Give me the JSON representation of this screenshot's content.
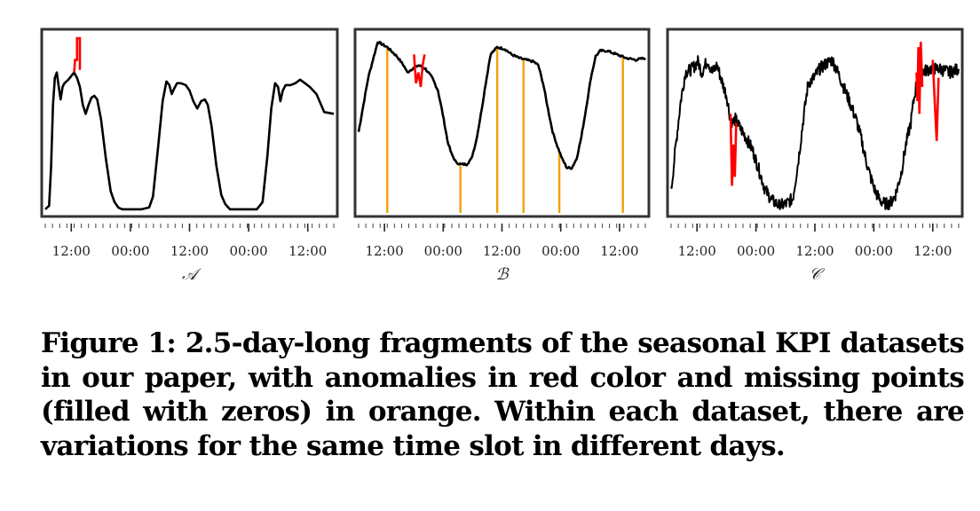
{
  "figure": {
    "colors": {
      "normal": "#000000",
      "anomaly": "#ff0000",
      "missing": "#f5a000"
    },
    "x_tick_labels": [
      "12:00",
      "00:00",
      "12:00",
      "00:00",
      "12:00"
    ]
  },
  "chart_data": [
    {
      "type": "line",
      "label": "𝒜",
      "xlim": [
        0,
        60
      ],
      "ylim": [
        0,
        1
      ],
      "y_ticks_shown": false,
      "grid": false,
      "base": [
        [
          0,
          0.02
        ],
        [
          0.8,
          0.04
        ],
        [
          1.2,
          0.25
        ],
        [
          1.6,
          0.6
        ],
        [
          2,
          0.75
        ],
        [
          2.4,
          0.78
        ],
        [
          2.8,
          0.7
        ],
        [
          3.2,
          0.63
        ],
        [
          3.6,
          0.7
        ],
        [
          4,
          0.72
        ],
        [
          4.8,
          0.74
        ],
        [
          5.4,
          0.76
        ],
        [
          6,
          0.78
        ],
        [
          6.6,
          0.75
        ],
        [
          7.2,
          0.7
        ],
        [
          7.8,
          0.6
        ],
        [
          8.4,
          0.55
        ],
        [
          9,
          0.6
        ],
        [
          9.6,
          0.64
        ],
        [
          10.2,
          0.65
        ],
        [
          10.8,
          0.63
        ],
        [
          11.6,
          0.52
        ],
        [
          12.6,
          0.3
        ],
        [
          13.6,
          0.12
        ],
        [
          14.4,
          0.06
        ],
        [
          15.2,
          0.03
        ],
        [
          16,
          0.02
        ],
        [
          20,
          0.02
        ],
        [
          21.6,
          0.03
        ],
        [
          22.4,
          0.09
        ],
        [
          23.4,
          0.35
        ],
        [
          24.4,
          0.62
        ],
        [
          25.2,
          0.73
        ],
        [
          25.8,
          0.71
        ],
        [
          26.3,
          0.66
        ],
        [
          26.8,
          0.69
        ],
        [
          27.4,
          0.72
        ],
        [
          28.2,
          0.72
        ],
        [
          29.2,
          0.71
        ],
        [
          30,
          0.68
        ],
        [
          30.8,
          0.62
        ],
        [
          31.6,
          0.58
        ],
        [
          32.4,
          0.62
        ],
        [
          33.2,
          0.63
        ],
        [
          33.8,
          0.6
        ],
        [
          34.6,
          0.48
        ],
        [
          35.6,
          0.26
        ],
        [
          36.6,
          0.1
        ],
        [
          37.4,
          0.05
        ],
        [
          38.4,
          0.02
        ],
        [
          44,
          0.02
        ],
        [
          45.2,
          0.06
        ],
        [
          46.2,
          0.32
        ],
        [
          47,
          0.58
        ],
        [
          47.8,
          0.72
        ],
        [
          48.4,
          0.7
        ],
        [
          48.9,
          0.62
        ],
        [
          49.4,
          0.68
        ],
        [
          50,
          0.71
        ],
        [
          51,
          0.71
        ],
        [
          52,
          0.72
        ],
        [
          53,
          0.74
        ],
        [
          54,
          0.72
        ],
        [
          55,
          0.7
        ],
        [
          56.4,
          0.66
        ],
        [
          58,
          0.56
        ],
        [
          60,
          0.55
        ]
      ],
      "anomalies": [
        [
          [
            6,
            0.78
          ],
          [
            6.2,
            0.85
          ],
          [
            6.6,
            0.85
          ],
          [
            6.6,
            0.97
          ],
          [
            7.2,
            0.97
          ],
          [
            7.2,
            0.8
          ],
          [
            7.4,
            0.8
          ]
        ]
      ],
      "missing_x": []
    },
    {
      "type": "line",
      "label": "ℬ",
      "xlim": [
        0,
        60
      ],
      "ylim": [
        0,
        1
      ],
      "y_ticks_shown": false,
      "grid": false,
      "base": [
        [
          0,
          0.45
        ],
        [
          2,
          0.75
        ],
        [
          4,
          0.95
        ],
        [
          6,
          0.92
        ],
        [
          8,
          0.87
        ],
        [
          9.4,
          0.82
        ],
        [
          10.2,
          0.78
        ],
        [
          11.2,
          0.8
        ],
        [
          12.6,
          0.82
        ],
        [
          14,
          0.8
        ],
        [
          15.4,
          0.75
        ],
        [
          16.6,
          0.68
        ],
        [
          17.6,
          0.55
        ],
        [
          18.6,
          0.4
        ],
        [
          19.4,
          0.33
        ],
        [
          20.4,
          0.28
        ],
        [
          21.4,
          0.27
        ],
        [
          22.6,
          0.27
        ],
        [
          23.6,
          0.3
        ],
        [
          24.6,
          0.4
        ],
        [
          25.6,
          0.55
        ],
        [
          26.6,
          0.72
        ],
        [
          27.6,
          0.88
        ],
        [
          29,
          0.92
        ],
        [
          30.6,
          0.91
        ],
        [
          32,
          0.88
        ],
        [
          33.6,
          0.86
        ],
        [
          35,
          0.85
        ],
        [
          36.6,
          0.84
        ],
        [
          37.6,
          0.82
        ],
        [
          38.6,
          0.72
        ],
        [
          39.6,
          0.58
        ],
        [
          40.6,
          0.45
        ],
        [
          41.6,
          0.37
        ],
        [
          42.6,
          0.3
        ],
        [
          43.6,
          0.25
        ],
        [
          44.6,
          0.25
        ],
        [
          45.6,
          0.3
        ],
        [
          46.6,
          0.42
        ],
        [
          47.6,
          0.58
        ],
        [
          48.6,
          0.75
        ],
        [
          49.6,
          0.87
        ],
        [
          50.6,
          0.9
        ],
        [
          52,
          0.9
        ],
        [
          54,
          0.88
        ],
        [
          56,
          0.86
        ],
        [
          58,
          0.85
        ],
        [
          60,
          0.86
        ]
      ],
      "anomalies": [
        [
          [
            11.6,
            0.88
          ],
          [
            12,
            0.72
          ],
          [
            12.5,
            0.78
          ],
          [
            13,
            0.7
          ],
          [
            13.4,
            0.82
          ],
          [
            13.8,
            0.88
          ]
        ]
      ],
      "missing_x": [
        6,
        21.3,
        29,
        34.5,
        42,
        55.3
      ]
    },
    {
      "type": "line",
      "label": "𝒞",
      "xlim": [
        0,
        60
      ],
      "ylim": [
        0,
        1
      ],
      "y_ticks_shown": false,
      "grid": false,
      "base": [
        [
          0,
          0.12
        ],
        [
          1,
          0.38
        ],
        [
          2,
          0.62
        ],
        [
          3,
          0.78
        ],
        [
          4.4,
          0.8
        ],
        [
          5.6,
          0.84
        ],
        [
          6.4,
          0.78
        ],
        [
          7.6,
          0.85
        ],
        [
          8.6,
          0.78
        ],
        [
          9.6,
          0.82
        ],
        [
          10.6,
          0.73
        ],
        [
          11.6,
          0.65
        ],
        [
          12.2,
          0.55
        ],
        [
          12.8,
          0.5
        ],
        [
          13.4,
          0.52
        ],
        [
          14.2,
          0.48
        ],
        [
          15.6,
          0.42
        ],
        [
          17,
          0.35
        ],
        [
          18.2,
          0.25
        ],
        [
          19.6,
          0.13
        ],
        [
          21,
          0.07
        ],
        [
          22.6,
          0.04
        ],
        [
          24,
          0.05
        ],
        [
          25.4,
          0.08
        ],
        [
          26.6,
          0.3
        ],
        [
          27.6,
          0.52
        ],
        [
          28.6,
          0.72
        ],
        [
          29.8,
          0.75
        ],
        [
          31,
          0.8
        ],
        [
          32.4,
          0.83
        ],
        [
          33.6,
          0.85
        ],
        [
          34.8,
          0.78
        ],
        [
          36,
          0.7
        ],
        [
          37.2,
          0.62
        ],
        [
          38.6,
          0.52
        ],
        [
          39.6,
          0.42
        ],
        [
          40.6,
          0.3
        ],
        [
          41.6,
          0.2
        ],
        [
          42.6,
          0.12
        ],
        [
          43.6,
          0.07
        ],
        [
          44.6,
          0.05
        ],
        [
          45.6,
          0.05
        ],
        [
          46.8,
          0.1
        ],
        [
          48,
          0.22
        ],
        [
          49,
          0.38
        ],
        [
          50,
          0.5
        ],
        [
          50.6,
          0.62
        ],
        [
          51.2,
          0.72
        ],
        [
          52.2,
          0.78
        ],
        [
          54,
          0.8
        ],
        [
          56,
          0.8
        ],
        [
          58,
          0.78
        ],
        [
          60,
          0.8
        ]
      ],
      "anomalies": [
        [
          [
            12.4,
            0.55
          ],
          [
            12.7,
            0.15
          ],
          [
            13,
            0.38
          ],
          [
            13.3,
            0.2
          ],
          [
            13.6,
            0.5
          ]
        ],
        [
          [
            51.2,
            0.78
          ],
          [
            51.4,
            0.62
          ],
          [
            51.6,
            0.92
          ],
          [
            51.8,
            0.55
          ],
          [
            52.1,
            0.95
          ],
          [
            52.4,
            0.7
          ]
        ],
        [
          [
            54.6,
            0.85
          ],
          [
            55,
            0.62
          ],
          [
            55.4,
            0.4
          ],
          [
            55.8,
            0.75
          ]
        ]
      ],
      "missing_x": []
    }
  ],
  "caption": "Figure 1: 2.5-day-long fragments of the seasonal KPI datasets in our paper, with anomalies in red color and missing points (filled with zeros) in orange. Within each dataset, there are variations for the same time slot in different days."
}
